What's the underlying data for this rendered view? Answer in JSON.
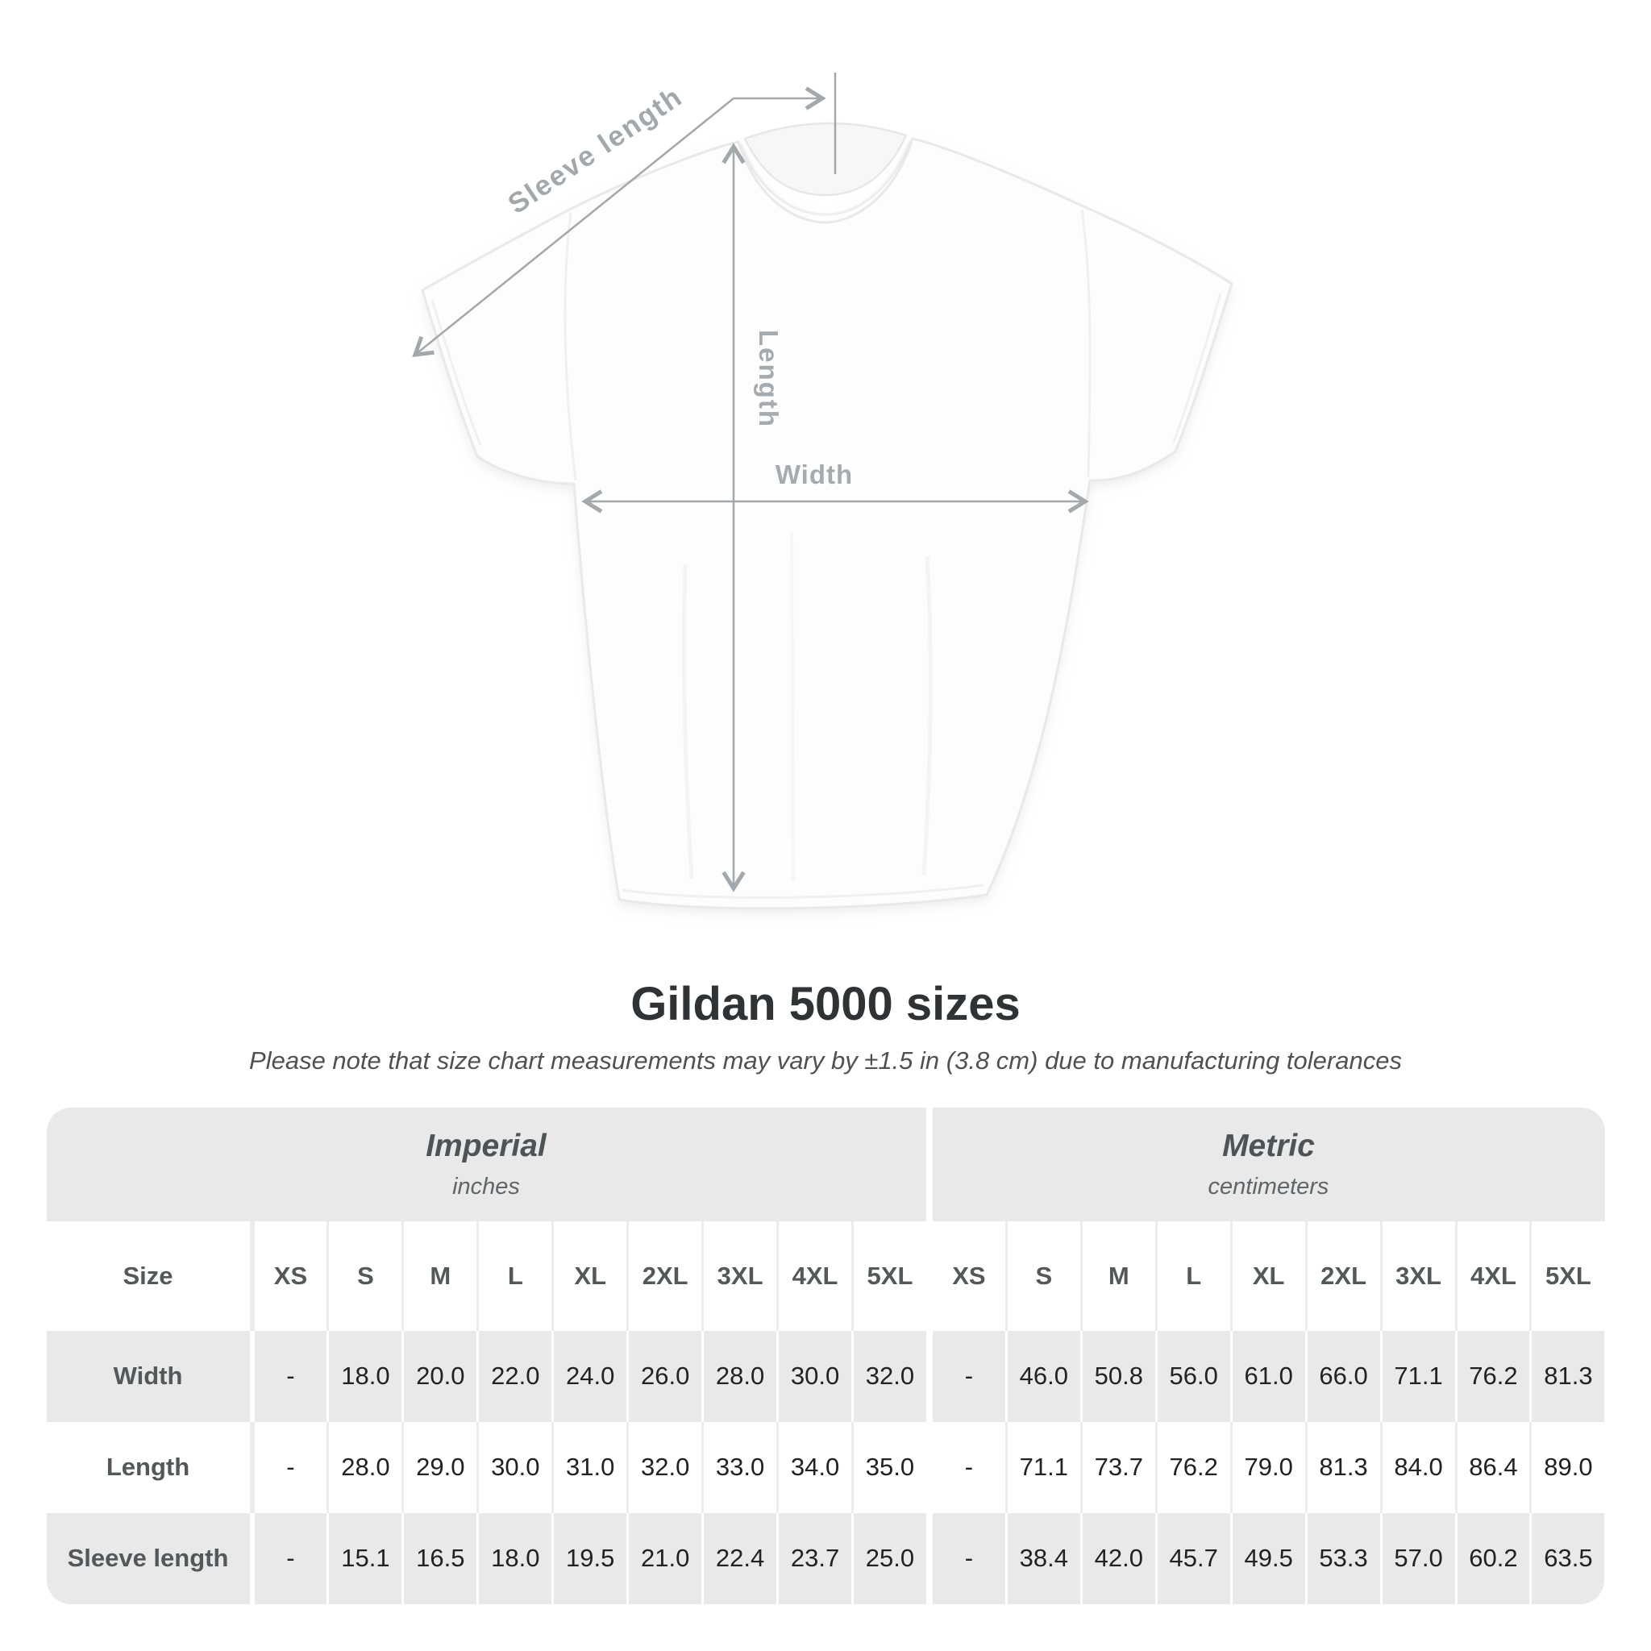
{
  "diagram": {
    "sleeve_length_label": "Sleeve length",
    "length_label": "Length",
    "width_label": "Width"
  },
  "title": "Gildan 5000 sizes",
  "subtitle": "Please note that size chart measurements may vary by ±1.5 in (3.8 cm) due to manufacturing tolerances",
  "table": {
    "corner_label": "Size",
    "groups": [
      {
        "name": "Imperial",
        "unit": "inches",
        "sizes": [
          "XS",
          "S",
          "M",
          "L",
          "XL",
          "2XL",
          "3XL",
          "4XL",
          "5XL"
        ]
      },
      {
        "name": "Metric",
        "unit": "centimeters",
        "sizes": [
          "XS",
          "S",
          "M",
          "L",
          "XL",
          "2XL",
          "3XL",
          "4XL",
          "5XL"
        ]
      }
    ],
    "rows": [
      {
        "label": "Width",
        "imperial": [
          "-",
          "18.0",
          "20.0",
          "22.0",
          "24.0",
          "26.0",
          "28.0",
          "30.0",
          "32.0"
        ],
        "metric": [
          "-",
          "46.0",
          "50.8",
          "56.0",
          "61.0",
          "66.0",
          "71.1",
          "76.2",
          "81.3"
        ]
      },
      {
        "label": "Length",
        "imperial": [
          "-",
          "28.0",
          "29.0",
          "30.0",
          "31.0",
          "32.0",
          "33.0",
          "34.0",
          "35.0"
        ],
        "metric": [
          "-",
          "71.1",
          "73.7",
          "76.2",
          "79.0",
          "81.3",
          "84.0",
          "86.4",
          "89.0"
        ]
      },
      {
        "label": "Sleeve length",
        "imperial": [
          "-",
          "15.1",
          "16.5",
          "18.0",
          "19.5",
          "21.0",
          "22.4",
          "23.7",
          "25.0"
        ],
        "metric": [
          "-",
          "38.4",
          "42.0",
          "45.7",
          "49.5",
          "53.3",
          "57.0",
          "60.2",
          "63.5"
        ]
      }
    ]
  },
  "colors": {
    "table-gray": "#e9e9e9",
    "annotation-gray": "#a2a8ac",
    "shirt-outline": "#e9e9e9",
    "title-color": "#2f3335"
  }
}
